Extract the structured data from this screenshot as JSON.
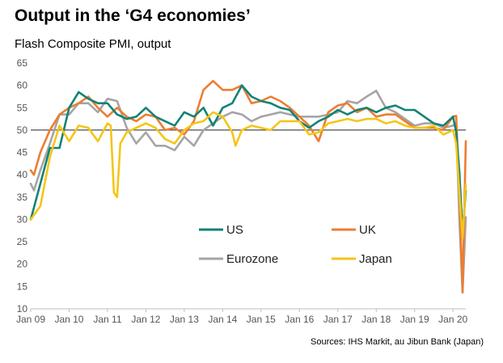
{
  "title": "Output in the ‘G4 economies’",
  "subtitle": "Flash Composite PMI, output",
  "source": "Sources: IHS Markit, au Jibun Bank (Japan)",
  "colors": {
    "US": "#128375",
    "UK": "#ed7d31",
    "Eurozone": "#a5a5a5",
    "Japan": "#f5c518",
    "reference_line": "#222222",
    "axis": "#bfbfbf"
  },
  "chart_data": {
    "type": "line",
    "title": "Output in the ‘G4 economies’",
    "subtitle": "Flash Composite PMI, output",
    "xlabel": "",
    "ylabel": "",
    "ylim": [
      10,
      65
    ],
    "yticks": [
      10,
      15,
      20,
      25,
      30,
      35,
      40,
      45,
      50,
      55,
      60,
      65
    ],
    "xlim": [
      "2009-01",
      "2020-05"
    ],
    "xticks": [
      "Jan 09",
      "Jan 10",
      "Jan 11",
      "Jan 12",
      "Jan 13",
      "Jan 14",
      "Jan 15",
      "Jan 16",
      "Jan 17",
      "Jan 18",
      "Jan 19",
      "Jan 20"
    ],
    "reference_line": 50,
    "grid": false,
    "legend_position": "lower-center",
    "series": [
      {
        "name": "US",
        "points": [
          [
            "2009-01",
            30
          ],
          [
            "2009-04",
            38
          ],
          [
            "2009-07",
            46
          ],
          [
            "2009-10",
            46
          ],
          [
            "2010-01",
            55
          ],
          [
            "2010-04",
            58.5
          ],
          [
            "2010-07",
            57
          ],
          [
            "2010-10",
            56
          ],
          [
            "2011-01",
            56
          ],
          [
            "2011-04",
            53.5
          ],
          [
            "2011-07",
            52.5
          ],
          [
            "2011-10",
            53
          ],
          [
            "2012-01",
            55
          ],
          [
            "2012-04",
            53
          ],
          [
            "2012-07",
            52
          ],
          [
            "2012-10",
            51
          ],
          [
            "2013-01",
            54
          ],
          [
            "2013-04",
            53
          ],
          [
            "2013-07",
            55
          ],
          [
            "2013-10",
            51
          ],
          [
            "2014-01",
            55
          ],
          [
            "2014-04",
            56
          ],
          [
            "2014-07",
            60
          ],
          [
            "2014-10",
            57.5
          ],
          [
            "2015-01",
            56.5
          ],
          [
            "2015-04",
            56
          ],
          [
            "2015-07",
            55
          ],
          [
            "2015-10",
            54.5
          ],
          [
            "2016-01",
            52
          ],
          [
            "2016-04",
            50.5
          ],
          [
            "2016-07",
            52
          ],
          [
            "2016-10",
            53
          ],
          [
            "2017-01",
            54.5
          ],
          [
            "2017-04",
            53.5
          ],
          [
            "2017-07",
            54.5
          ],
          [
            "2017-10",
            55
          ],
          [
            "2018-01",
            54
          ],
          [
            "2018-04",
            55
          ],
          [
            "2018-07",
            55.5
          ],
          [
            "2018-10",
            54.5
          ],
          [
            "2019-01",
            54.5
          ],
          [
            "2019-04",
            53
          ],
          [
            "2019-07",
            51.5
          ],
          [
            "2019-10",
            51
          ],
          [
            "2020-01",
            53
          ],
          [
            "2020-02",
            49.6
          ],
          [
            "2020-03",
            40.5
          ],
          [
            "2020-04",
            27
          ],
          [
            "2020-05",
            36.4
          ]
        ]
      },
      {
        "name": "UK",
        "points": [
          [
            "2009-01",
            41
          ],
          [
            "2009-02",
            40
          ],
          [
            "2009-04",
            45
          ],
          [
            "2009-07",
            50
          ],
          [
            "2009-10",
            53.5
          ],
          [
            "2010-01",
            55
          ],
          [
            "2010-04",
            56
          ],
          [
            "2010-07",
            57.5
          ],
          [
            "2010-10",
            55
          ],
          [
            "2011-01",
            53
          ],
          [
            "2011-04",
            55
          ],
          [
            "2011-07",
            53
          ],
          [
            "2011-10",
            52
          ],
          [
            "2012-01",
            53.5
          ],
          [
            "2012-04",
            53
          ],
          [
            "2012-07",
            50
          ],
          [
            "2012-10",
            50.5
          ],
          [
            "2013-01",
            49
          ],
          [
            "2013-04",
            52
          ],
          [
            "2013-07",
            59
          ],
          [
            "2013-10",
            61
          ],
          [
            "2014-01",
            59
          ],
          [
            "2014-04",
            59
          ],
          [
            "2014-07",
            60
          ],
          [
            "2014-10",
            56
          ],
          [
            "2015-01",
            56.5
          ],
          [
            "2015-04",
            57.5
          ],
          [
            "2015-07",
            56.5
          ],
          [
            "2015-10",
            55
          ],
          [
            "2016-01",
            53
          ],
          [
            "2016-04",
            51
          ],
          [
            "2016-07",
            47.5
          ],
          [
            "2016-10",
            54
          ],
          [
            "2017-01",
            55.5
          ],
          [
            "2017-04",
            56
          ],
          [
            "2017-07",
            54
          ],
          [
            "2017-10",
            55
          ],
          [
            "2018-01",
            53
          ],
          [
            "2018-04",
            53.5
          ],
          [
            "2018-07",
            53.5
          ],
          [
            "2018-10",
            52
          ],
          [
            "2019-01",
            50.5
          ],
          [
            "2019-04",
            50.5
          ],
          [
            "2019-07",
            50.5
          ],
          [
            "2019-10",
            50
          ],
          [
            "2020-01",
            53
          ],
          [
            "2020-02",
            53.2
          ],
          [
            "2020-03",
            36
          ],
          [
            "2020-04",
            13.8
          ],
          [
            "2020-05",
            47.5
          ]
        ]
      },
      {
        "name": "Eurozone",
        "points": [
          [
            "2009-01",
            38
          ],
          [
            "2009-02",
            36.5
          ],
          [
            "2009-04",
            41
          ],
          [
            "2009-07",
            47
          ],
          [
            "2009-10",
            53.5
          ],
          [
            "2010-01",
            53.5
          ],
          [
            "2010-04",
            56
          ],
          [
            "2010-07",
            56
          ],
          [
            "2010-10",
            54
          ],
          [
            "2011-01",
            57
          ],
          [
            "2011-04",
            56.5
          ],
          [
            "2011-07",
            50.5
          ],
          [
            "2011-10",
            47
          ],
          [
            "2012-01",
            49.5
          ],
          [
            "2012-04",
            46.5
          ],
          [
            "2012-07",
            46.5
          ],
          [
            "2012-10",
            45.5
          ],
          [
            "2013-01",
            48.5
          ],
          [
            "2013-04",
            46.5
          ],
          [
            "2013-07",
            50
          ],
          [
            "2013-10",
            51.5
          ],
          [
            "2014-01",
            53
          ],
          [
            "2014-04",
            54
          ],
          [
            "2014-07",
            53.5
          ],
          [
            "2014-10",
            52
          ],
          [
            "2015-01",
            53
          ],
          [
            "2015-04",
            53.5
          ],
          [
            "2015-07",
            54
          ],
          [
            "2015-10",
            53.5
          ],
          [
            "2016-01",
            53
          ],
          [
            "2016-04",
            53
          ],
          [
            "2016-07",
            53
          ],
          [
            "2016-10",
            53.5
          ],
          [
            "2017-01",
            54
          ],
          [
            "2017-04",
            56.5
          ],
          [
            "2017-07",
            56
          ],
          [
            "2017-10",
            57.5
          ],
          [
            "2018-01",
            58.8
          ],
          [
            "2018-04",
            55
          ],
          [
            "2018-07",
            54
          ],
          [
            "2018-10",
            52.5
          ],
          [
            "2019-01",
            51
          ],
          [
            "2019-04",
            51.5
          ],
          [
            "2019-07",
            51.5
          ],
          [
            "2019-10",
            50.5
          ],
          [
            "2020-01",
            51
          ],
          [
            "2020-02",
            51.6
          ],
          [
            "2020-03",
            29.7
          ],
          [
            "2020-04",
            13.6
          ],
          [
            "2020-05",
            30.5
          ]
        ]
      },
      {
        "name": "Japan",
        "points": [
          [
            "2009-01",
            30
          ],
          [
            "2009-04",
            33
          ],
          [
            "2009-07",
            44
          ],
          [
            "2009-10",
            51
          ],
          [
            "2010-01",
            47.5
          ],
          [
            "2010-04",
            51
          ],
          [
            "2010-07",
            50.5
          ],
          [
            "2010-10",
            47.5
          ],
          [
            "2011-01",
            51.5
          ],
          [
            "2011-02",
            51
          ],
          [
            "2011-03",
            36
          ],
          [
            "2011-04",
            35
          ],
          [
            "2011-05",
            47
          ],
          [
            "2011-07",
            49.5
          ],
          [
            "2011-10",
            50.5
          ],
          [
            "2012-01",
            51.5
          ],
          [
            "2012-04",
            50.5
          ],
          [
            "2012-07",
            48
          ],
          [
            "2012-10",
            47
          ],
          [
            "2013-01",
            50
          ],
          [
            "2013-04",
            51.5
          ],
          [
            "2013-07",
            52
          ],
          [
            "2013-10",
            54
          ],
          [
            "2014-01",
            53
          ],
          [
            "2014-04",
            49.5
          ],
          [
            "2014-05",
            46.5
          ],
          [
            "2014-07",
            50
          ],
          [
            "2014-10",
            51
          ],
          [
            "2015-01",
            50.5
          ],
          [
            "2015-04",
            50
          ],
          [
            "2015-07",
            52
          ],
          [
            "2015-10",
            52
          ],
          [
            "2016-01",
            52
          ],
          [
            "2016-04",
            49
          ],
          [
            "2016-07",
            49.5
          ],
          [
            "2016-10",
            51.5
          ],
          [
            "2017-01",
            52
          ],
          [
            "2017-04",
            52.5
          ],
          [
            "2017-07",
            52
          ],
          [
            "2017-10",
            52.5
          ],
          [
            "2018-01",
            52.5
          ],
          [
            "2018-04",
            51.5
          ],
          [
            "2018-07",
            52
          ],
          [
            "2018-10",
            51
          ],
          [
            "2019-01",
            50.5
          ],
          [
            "2019-04",
            50.5
          ],
          [
            "2019-07",
            51
          ],
          [
            "2019-10",
            49
          ],
          [
            "2020-01",
            50
          ],
          [
            "2020-02",
            47
          ],
          [
            "2020-03",
            36
          ],
          [
            "2020-04",
            25.8
          ],
          [
            "2020-05",
            37.9
          ]
        ]
      }
    ]
  }
}
